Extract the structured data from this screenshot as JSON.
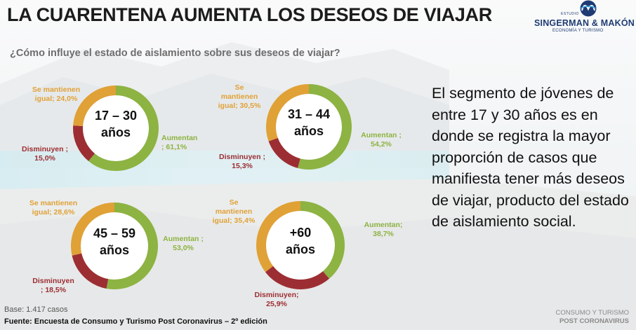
{
  "title": "LA CUARENTENA AUMENTA LOS DESEOS DE VIAJAR",
  "subtitle": "¿Cómo influye el estado de aislamiento sobre sus deseos de viajar?",
  "logo": {
    "estudio": "ESTUDIO",
    "name": "SINGERMAN & MAKÓN",
    "tagline": "ECONOMÍA Y TURISMO",
    "icon": "sm-monogram-icon"
  },
  "description": "El segmento de jóvenes de entre 17 y 30 años es en donde se registra la mayor proporción de casos que manifiesta tener más deseos de viajar, producto del estado de aislamiento social.",
  "base": "Base: 1.417 casos",
  "fuente": "Fuente: Encuesta de Consumo y Turismo Post Coronavirus – 2º edición",
  "footer": {
    "line1": "CONSUMO Y TURISMO",
    "line2": "POST CORONAVIRUS"
  },
  "colors": {
    "aumentan": "#8db342",
    "disminuyen": "#9c2e33",
    "mantienen": "#e0a136"
  },
  "chart_data": [
    {
      "type": "pie",
      "center_label": [
        "17 – 30",
        "años"
      ],
      "slices": [
        {
          "label": [
            "Aumentan",
            "; 61,1%"
          ],
          "value": 61.1
        },
        {
          "label": [
            "Disminuyen ;",
            "15,0%"
          ],
          "value": 15.0
        },
        {
          "label": [
            "Se mantienen",
            "igual; 24,0%"
          ],
          "value": 24.0
        }
      ]
    },
    {
      "type": "pie",
      "center_label": [
        "31 – 44",
        "años"
      ],
      "slices": [
        {
          "label": [
            "Aumentan ;",
            "54,2%"
          ],
          "value": 54.2
        },
        {
          "label": [
            "Disminuyen ;",
            "15,3%"
          ],
          "value": 15.3
        },
        {
          "label": [
            "Se",
            "mantienen",
            "igual; 30,5%"
          ],
          "value": 30.5
        }
      ]
    },
    {
      "type": "pie",
      "center_label": [
        "45 – 59",
        "años"
      ],
      "slices": [
        {
          "label": [
            "Aumentan ;",
            "53,0%"
          ],
          "value": 53.0
        },
        {
          "label": [
            "Disminuyen",
            "; 18,5%"
          ],
          "value": 18.5
        },
        {
          "label": [
            "Se mantienen",
            "igual; 28,6%"
          ],
          "value": 28.6
        }
      ]
    },
    {
      "type": "pie",
      "center_label": [
        "+60",
        "años"
      ],
      "slices": [
        {
          "label": [
            "Aumentan;",
            "38,7%"
          ],
          "value": 38.7
        },
        {
          "label": [
            "Disminuyen;",
            "25,9%"
          ],
          "value": 25.9
        },
        {
          "label": [
            "Se",
            "mantienen",
            "igual; 35,4%"
          ],
          "value": 35.4
        }
      ]
    }
  ]
}
